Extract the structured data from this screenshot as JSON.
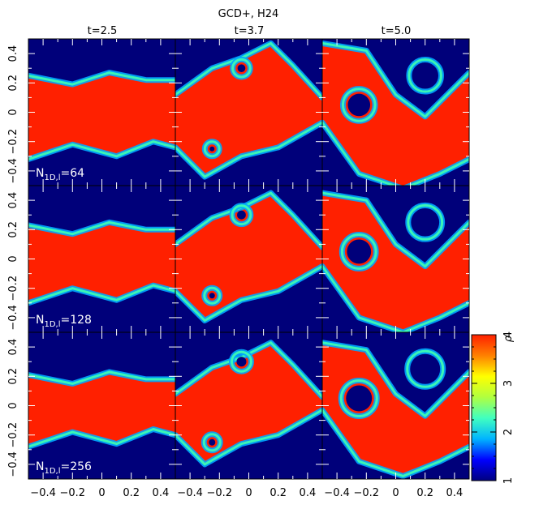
{
  "figure": {
    "title": "GCD+, H24",
    "columns": [
      "t=2.5",
      "t=3.7",
      "t=5.0"
    ],
    "row_labels": [
      {
        "base": "N",
        "sub": "1D,l",
        "value": "=64"
      },
      {
        "base": "N",
        "sub": "1D,l",
        "value": "=128"
      },
      {
        "base": "N",
        "sub": "1D,l",
        "value": "=256"
      }
    ]
  },
  "chart_data": {
    "type": "heatmap",
    "title": "GCD+, H24",
    "panel_titles": [
      "t=2.5",
      "t=3.7",
      "t=5.0"
    ],
    "rows": [
      "N1D,l=64",
      "N1D,l=128",
      "N1D,l=256"
    ],
    "xlim": [
      -0.5,
      0.5
    ],
    "ylim": [
      -0.5,
      0.5
    ],
    "x_ticks": [
      -0.4,
      -0.2,
      0,
      0.2,
      0.4
    ],
    "y_ticks": [
      -0.4,
      -0.2,
      0,
      0.2,
      0.4
    ],
    "x_tick_labels": [
      "−0.4",
      "−0.2",
      "0",
      "0.2",
      "0.4"
    ],
    "y_tick_labels": [
      "−0.4",
      "−0.2",
      "0",
      "0.2",
      "0.4"
    ],
    "colorbar": {
      "label": "ρ",
      "min": 1,
      "max": 4,
      "ticks": [
        1,
        2,
        3,
        4
      ],
      "tick_labels": [
        "1",
        "2",
        "3",
        "4"
      ],
      "colormap": [
        "#000080",
        "#0000ff",
        "#00b4ff",
        "#40ffc0",
        "#b0ff40",
        "#ffff00",
        "#ff8000",
        "#ff2000"
      ]
    },
    "colors": {
      "dense": "#ff2000",
      "light": "#00007a"
    }
  }
}
